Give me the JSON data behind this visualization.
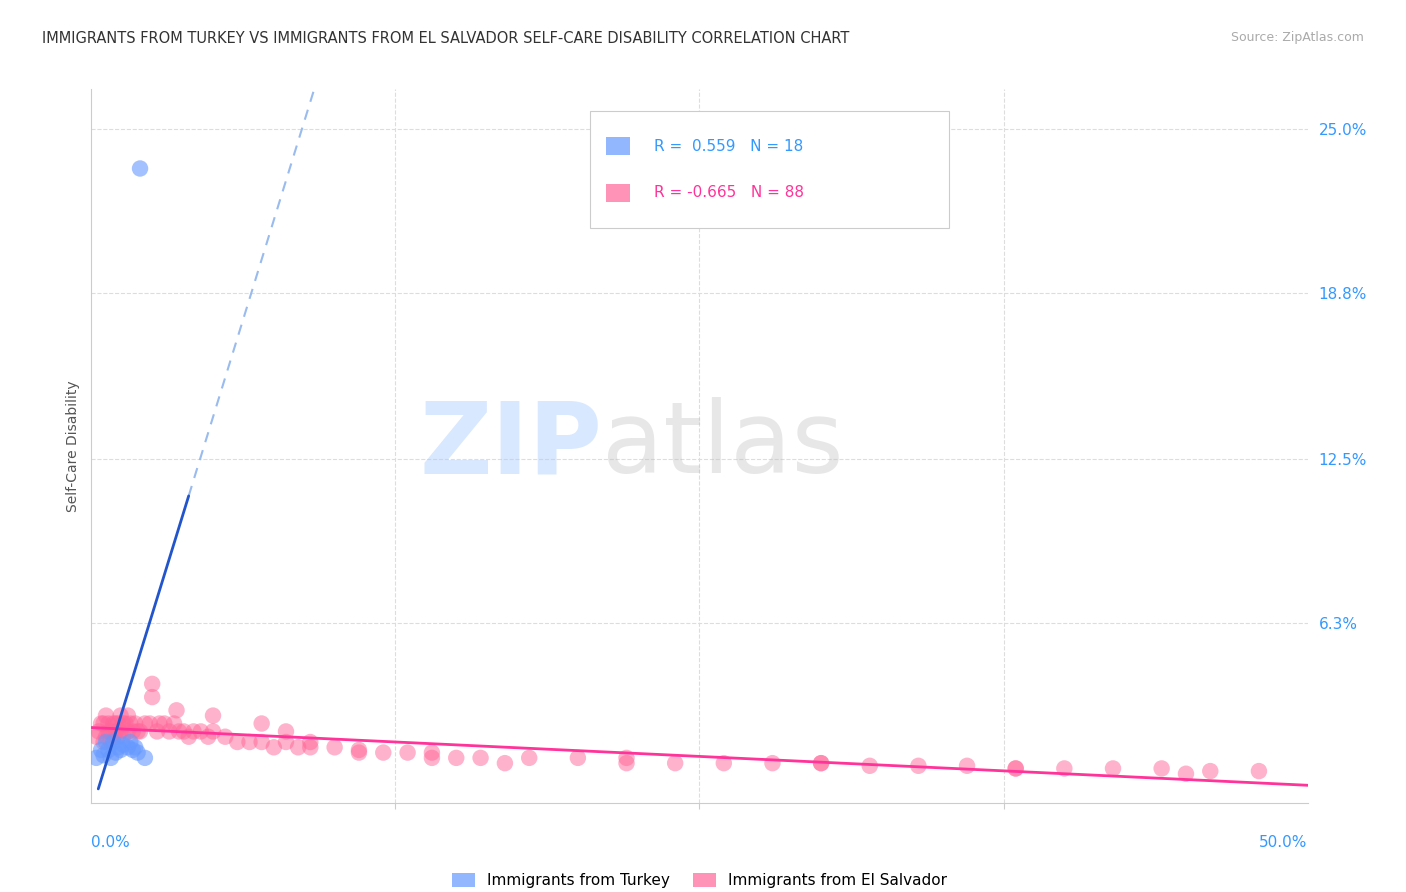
{
  "title": "IMMIGRANTS FROM TURKEY VS IMMIGRANTS FROM EL SALVADOR SELF-CARE DISABILITY CORRELATION CHART",
  "source": "Source: ZipAtlas.com",
  "ylabel": "Self-Care Disability",
  "yticks": [
    0.0,
    0.063,
    0.125,
    0.188,
    0.25
  ],
  "ytick_labels": [
    "",
    "6.3%",
    "12.5%",
    "18.8%",
    "25.0%"
  ],
  "xlim": [
    0.0,
    0.5
  ],
  "ylim": [
    -0.005,
    0.265
  ],
  "turkey_color": "#6699FF",
  "elsalvador_color": "#FF6699",
  "turkey_trend_color": "#2255CC",
  "elsalvador_trend_color": "#FF3399",
  "turkey_dashed_color": "#99BBEE",
  "background_color": "#FFFFFF",
  "turkey_x": [
    0.002,
    0.004,
    0.005,
    0.006,
    0.007,
    0.008,
    0.009,
    0.01,
    0.011,
    0.012,
    0.013,
    0.015,
    0.016,
    0.017,
    0.018,
    0.019,
    0.02,
    0.022
  ],
  "turkey_y": [
    0.012,
    0.015,
    0.013,
    0.018,
    0.015,
    0.012,
    0.018,
    0.014,
    0.016,
    0.015,
    0.017,
    0.016,
    0.018,
    0.015,
    0.016,
    0.014,
    0.235,
    0.012
  ],
  "elsalvador_x": [
    0.002,
    0.003,
    0.004,
    0.005,
    0.005,
    0.006,
    0.006,
    0.007,
    0.007,
    0.008,
    0.008,
    0.009,
    0.009,
    0.01,
    0.01,
    0.011,
    0.011,
    0.012,
    0.012,
    0.013,
    0.013,
    0.014,
    0.015,
    0.015,
    0.016,
    0.017,
    0.018,
    0.019,
    0.02,
    0.022,
    0.024,
    0.025,
    0.027,
    0.028,
    0.03,
    0.032,
    0.034,
    0.036,
    0.038,
    0.04,
    0.042,
    0.045,
    0.048,
    0.05,
    0.055,
    0.06,
    0.065,
    0.07,
    0.075,
    0.08,
    0.085,
    0.09,
    0.1,
    0.11,
    0.12,
    0.13,
    0.14,
    0.15,
    0.16,
    0.18,
    0.2,
    0.22,
    0.24,
    0.26,
    0.28,
    0.3,
    0.32,
    0.34,
    0.36,
    0.38,
    0.4,
    0.42,
    0.44,
    0.46,
    0.48,
    0.025,
    0.035,
    0.05,
    0.07,
    0.09,
    0.11,
    0.14,
    0.17,
    0.45,
    0.38,
    0.3,
    0.22,
    0.08
  ],
  "elsalvador_y": [
    0.02,
    0.022,
    0.025,
    0.018,
    0.025,
    0.02,
    0.028,
    0.022,
    0.025,
    0.018,
    0.022,
    0.02,
    0.025,
    0.022,
    0.025,
    0.02,
    0.025,
    0.022,
    0.028,
    0.025,
    0.02,
    0.025,
    0.028,
    0.022,
    0.025,
    0.022,
    0.025,
    0.022,
    0.022,
    0.025,
    0.025,
    0.035,
    0.022,
    0.025,
    0.025,
    0.022,
    0.025,
    0.022,
    0.022,
    0.02,
    0.022,
    0.022,
    0.02,
    0.022,
    0.02,
    0.018,
    0.018,
    0.018,
    0.016,
    0.018,
    0.016,
    0.016,
    0.016,
    0.015,
    0.014,
    0.014,
    0.014,
    0.012,
    0.012,
    0.012,
    0.012,
    0.01,
    0.01,
    0.01,
    0.01,
    0.01,
    0.009,
    0.009,
    0.009,
    0.008,
    0.008,
    0.008,
    0.008,
    0.007,
    0.007,
    0.04,
    0.03,
    0.028,
    0.025,
    0.018,
    0.014,
    0.012,
    0.01,
    0.006,
    0.008,
    0.01,
    0.012,
    0.022
  ]
}
